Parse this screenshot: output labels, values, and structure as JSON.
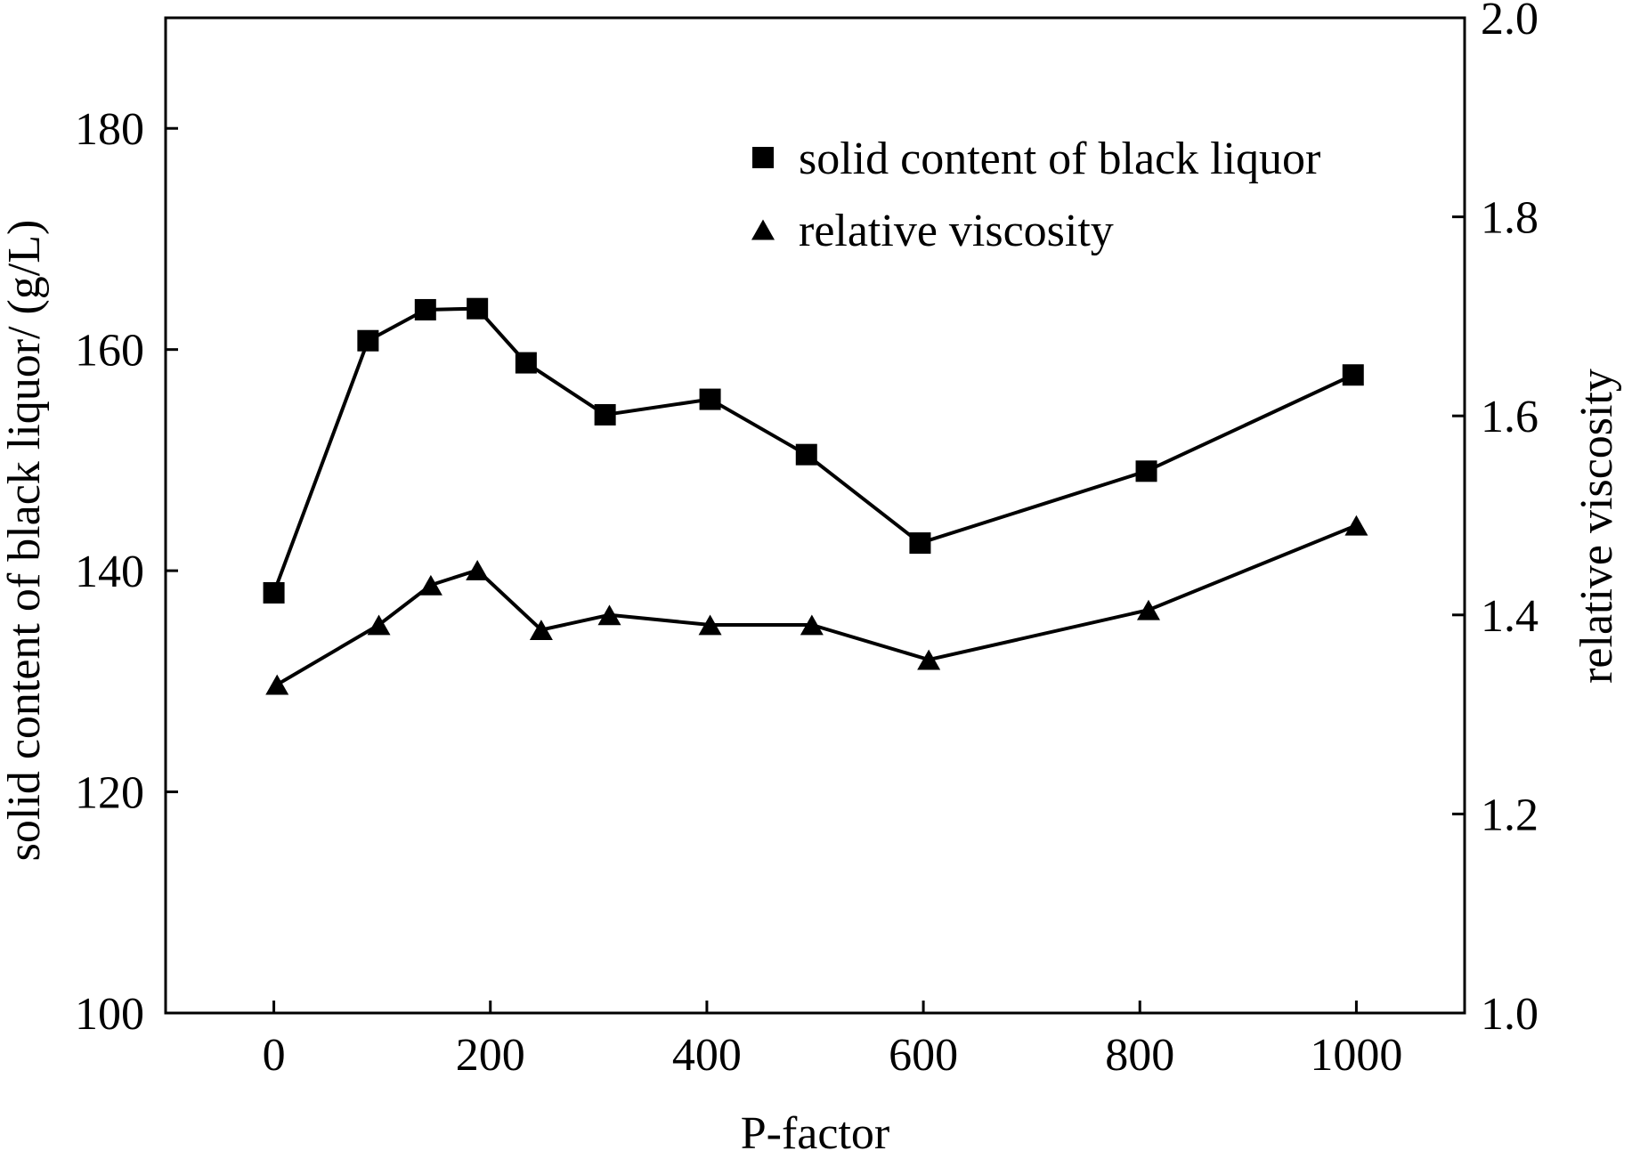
{
  "chart_data": {
    "type": "line",
    "title": "",
    "xlabel": "P-factor",
    "ylabel_left": "solid content of black liquor/ (g/L)",
    "ylabel_right": "relative viscosity",
    "xlim": [
      -100,
      1100
    ],
    "ylim_left": [
      100,
      190
    ],
    "ylim_right": [
      1.0,
      2.0
    ],
    "xticks": [
      0,
      200,
      400,
      600,
      800,
      1000
    ],
    "xtick_labels": [
      "0",
      "200",
      "400",
      "600",
      "800",
      "1000"
    ],
    "yticks_left": [
      100,
      120,
      140,
      160,
      180
    ],
    "ytick_labels_left": [
      "100",
      "120",
      "140",
      "160",
      "180"
    ],
    "yticks_right": [
      1.0,
      1.2,
      1.4,
      1.6,
      1.8,
      2.0
    ],
    "ytick_labels_right": [
      "1.0",
      "1.2",
      "1.4",
      "1.6",
      "1.8",
      "2.0"
    ],
    "grid": false,
    "legend_position": "top-right",
    "series": [
      {
        "name": "solid content of black liquor",
        "axis": "left",
        "marker": "square",
        "x": [
          0,
          87,
          140,
          188,
          233,
          306,
          403,
          492,
          597,
          806,
          997
        ],
        "y": [
          138.0,
          160.8,
          163.6,
          163.7,
          158.8,
          154.1,
          155.5,
          150.5,
          142.5,
          149.0,
          157.7
        ]
      },
      {
        "name": "relative viscosity",
        "axis": "right",
        "marker": "triangle",
        "x": [
          3,
          97,
          145,
          188,
          247,
          310,
          403,
          497,
          605,
          808,
          1000
        ],
        "y": [
          1.33,
          1.39,
          1.43,
          1.445,
          1.385,
          1.4,
          1.39,
          1.39,
          1.355,
          1.405,
          1.49
        ]
      }
    ],
    "colors": {
      "line": "#000000",
      "marker": "#000000"
    }
  }
}
